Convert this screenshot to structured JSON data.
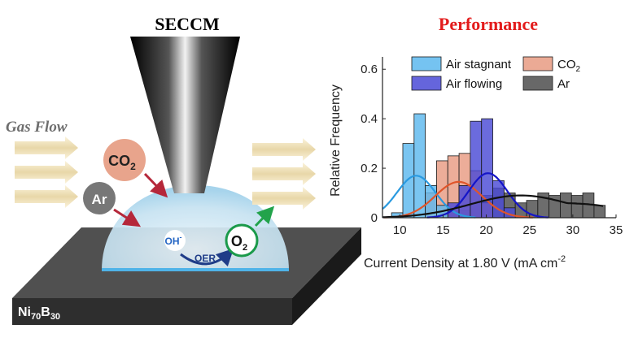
{
  "left": {
    "title": "SECCM",
    "gas_flow_label": "Gas Flow",
    "co2_label": "CO",
    "co2_sub": "2",
    "ar_label": "Ar",
    "oh_label": "OH",
    "oh_sup": "-",
    "oer_label": "OER",
    "o2_label": "O",
    "o2_sub": "2",
    "substrate_parts": [
      "Ni",
      "70",
      "B",
      "30"
    ],
    "colors": {
      "co2_ball": "#e8a48c",
      "ar_ball": "#777777",
      "o2_ring": "#1b9a4a",
      "red_arrow": "#b5273a",
      "green_arrow": "#22a34b",
      "oer_arrow": "#1f3c88",
      "droplet": "#cfe6f2"
    }
  },
  "right": {
    "title": "Performance",
    "title_color": "#e31c1c"
  },
  "chart_data": {
    "type": "bar",
    "ylabel": "Relative Frequency",
    "xlabel_main": "Current Density at 1.80 V (mA cm",
    "xlabel_sup": "-2",
    "xlim": [
      8,
      35
    ],
    "ylim": [
      0,
      0.65
    ],
    "xticks": [
      10,
      15,
      20,
      25,
      30,
      35
    ],
    "yticks": [
      0,
      0.2,
      0.4,
      0.6
    ],
    "xtick_labels": [
      "10",
      "15",
      "20",
      "25",
      "30",
      "35"
    ],
    "ytick_labels": [
      "0",
      "0.2",
      "0.4",
      "0.6"
    ],
    "bin_width": 1.3,
    "legend": {
      "placement": "top",
      "entries": [
        {
          "label": "Air stagnant"
        },
        {
          "label": "CO",
          "sub": "2"
        },
        {
          "label": "Air flowing"
        },
        {
          "label": "Ar"
        }
      ]
    },
    "series": [
      {
        "name": "Air stagnant",
        "color": "#5db8ee",
        "fit_color": "#2a9ae0",
        "bins": [
          [
            9.7,
            0.02
          ],
          [
            11.0,
            0.3
          ],
          [
            12.3,
            0.42
          ],
          [
            13.6,
            0.13
          ],
          [
            14.9,
            0.05
          ]
        ],
        "fit": {
          "mu": 11.9,
          "sigma": 2.2,
          "peak": 0.17
        }
      },
      {
        "name": "CO2",
        "color": "#e89b82",
        "fit_color": "#e0552a",
        "bins": [
          [
            13.6,
            0.1
          ],
          [
            14.9,
            0.23
          ],
          [
            16.2,
            0.25
          ],
          [
            17.5,
            0.26
          ],
          [
            18.8,
            0.19
          ],
          [
            20.1,
            0.06
          ]
        ],
        "fit": {
          "mu": 16.8,
          "sigma": 2.7,
          "peak": 0.145
        }
      },
      {
        "name": "Air flowing",
        "color": "#4a4ad6",
        "fit_color": "#1515c8",
        "bins": [
          [
            16.2,
            0.06
          ],
          [
            17.5,
            0.13
          ],
          [
            18.8,
            0.39
          ],
          [
            20.1,
            0.4
          ],
          [
            21.4,
            0.15
          ],
          [
            22.7,
            0.04
          ]
        ],
        "fit": {
          "mu": 20.2,
          "sigma": 2.2,
          "peak": 0.18
        }
      },
      {
        "name": "Ar",
        "color": "#4d4d4d",
        "fit_color": "#111111",
        "bins": [
          [
            14.9,
            0.02
          ],
          [
            16.2,
            0.03
          ],
          [
            17.5,
            0.03
          ],
          [
            18.8,
            0.06
          ],
          [
            20.1,
            0.09
          ],
          [
            21.4,
            0.12
          ],
          [
            22.7,
            0.1
          ],
          [
            24.0,
            0.06
          ],
          [
            25.3,
            0.07
          ],
          [
            26.6,
            0.1
          ],
          [
            27.9,
            0.09
          ],
          [
            29.2,
            0.1
          ],
          [
            30.5,
            0.09
          ],
          [
            31.8,
            0.1
          ],
          [
            33.1,
            0.05
          ]
        ],
        "fit": {
          "mu": 24.0,
          "sigma": 5.8,
          "peak": 0.09,
          "plateau": 0.06
        }
      }
    ]
  }
}
